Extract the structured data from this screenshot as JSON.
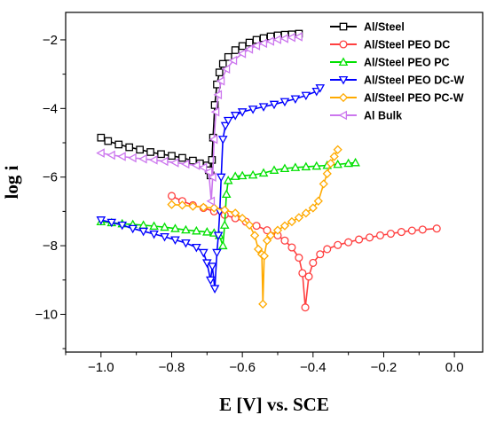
{
  "chart_data": {
    "type": "line",
    "title": "",
    "xlabel": "E [V] vs. SCE",
    "ylabel": "log i",
    "xlim": [
      -1.1,
      0.08
    ],
    "ylim": [
      -11.1,
      -1.2
    ],
    "xticks": [
      -1.0,
      -0.8,
      -0.6,
      -0.4,
      -0.2,
      0.0
    ],
    "xtick_labels": [
      "−1.0",
      "−0.8",
      "−0.6",
      "−0.4",
      "−0.2",
      "0.0"
    ],
    "yticks": [
      -10,
      -8,
      -6,
      -4,
      -2
    ],
    "ytick_labels": [
      "−10",
      "−8",
      "−6",
      "−4",
      "−2"
    ],
    "grid": false,
    "legend_position": "top-right",
    "series": [
      {
        "name": "Al/Steel",
        "color": "#000000",
        "marker": "square",
        "points": [
          [
            -1.0,
            -4.85
          ],
          [
            -0.98,
            -4.95
          ],
          [
            -0.95,
            -5.05
          ],
          [
            -0.92,
            -5.13
          ],
          [
            -0.89,
            -5.2
          ],
          [
            -0.86,
            -5.27
          ],
          [
            -0.83,
            -5.33
          ],
          [
            -0.8,
            -5.38
          ],
          [
            -0.77,
            -5.44
          ],
          [
            -0.74,
            -5.52
          ],
          [
            -0.72,
            -5.6
          ],
          [
            -0.7,
            -5.66
          ],
          [
            -0.695,
            -5.8
          ],
          [
            -0.69,
            -5.95
          ],
          [
            -0.686,
            -5.5
          ],
          [
            -0.683,
            -4.85
          ],
          [
            -0.678,
            -3.9
          ],
          [
            -0.672,
            -3.3
          ],
          [
            -0.665,
            -2.95
          ],
          [
            -0.655,
            -2.7
          ],
          [
            -0.64,
            -2.5
          ],
          [
            -0.62,
            -2.3
          ],
          [
            -0.6,
            -2.18
          ],
          [
            -0.58,
            -2.08
          ],
          [
            -0.56,
            -2.0
          ],
          [
            -0.54,
            -1.95
          ],
          [
            -0.52,
            -1.9
          ],
          [
            -0.5,
            -1.87
          ],
          [
            -0.48,
            -1.85
          ],
          [
            -0.46,
            -1.84
          ],
          [
            -0.44,
            -1.82
          ]
        ]
      },
      {
        "name": "Al/Steel PEO DC",
        "color": "#ff4040",
        "marker": "circle",
        "points": [
          [
            -0.8,
            -6.55
          ],
          [
            -0.77,
            -6.7
          ],
          [
            -0.74,
            -6.82
          ],
          [
            -0.71,
            -6.9
          ],
          [
            -0.68,
            -7.0
          ],
          [
            -0.65,
            -7.1
          ],
          [
            -0.62,
            -7.2
          ],
          [
            -0.59,
            -7.3
          ],
          [
            -0.56,
            -7.42
          ],
          [
            -0.53,
            -7.55
          ],
          [
            -0.5,
            -7.7
          ],
          [
            -0.48,
            -7.85
          ],
          [
            -0.46,
            -8.05
          ],
          [
            -0.44,
            -8.35
          ],
          [
            -0.43,
            -8.8
          ],
          [
            -0.422,
            -9.8
          ],
          [
            -0.412,
            -8.9
          ],
          [
            -0.4,
            -8.5
          ],
          [
            -0.38,
            -8.25
          ],
          [
            -0.36,
            -8.1
          ],
          [
            -0.33,
            -7.98
          ],
          [
            -0.3,
            -7.9
          ],
          [
            -0.27,
            -7.82
          ],
          [
            -0.24,
            -7.76
          ],
          [
            -0.21,
            -7.7
          ],
          [
            -0.18,
            -7.65
          ],
          [
            -0.15,
            -7.6
          ],
          [
            -0.12,
            -7.56
          ],
          [
            -0.09,
            -7.53
          ],
          [
            -0.05,
            -7.5
          ]
        ]
      },
      {
        "name": "Al/Steel PEO PC",
        "color": "#00e000",
        "marker": "triangle-up",
        "points": [
          [
            -1.0,
            -7.3
          ],
          [
            -0.97,
            -7.33
          ],
          [
            -0.94,
            -7.36
          ],
          [
            -0.91,
            -7.38
          ],
          [
            -0.88,
            -7.4
          ],
          [
            -0.85,
            -7.43
          ],
          [
            -0.82,
            -7.46
          ],
          [
            -0.79,
            -7.5
          ],
          [
            -0.76,
            -7.54
          ],
          [
            -0.73,
            -7.57
          ],
          [
            -0.7,
            -7.6
          ],
          [
            -0.68,
            -7.63
          ],
          [
            -0.665,
            -7.7
          ],
          [
            -0.655,
            -8.0
          ],
          [
            -0.65,
            -7.4
          ],
          [
            -0.645,
            -6.5
          ],
          [
            -0.64,
            -6.1
          ],
          [
            -0.62,
            -5.98
          ],
          [
            -0.6,
            -5.96
          ],
          [
            -0.57,
            -5.94
          ],
          [
            -0.54,
            -5.88
          ],
          [
            -0.51,
            -5.8
          ],
          [
            -0.48,
            -5.75
          ],
          [
            -0.45,
            -5.72
          ],
          [
            -0.42,
            -5.7
          ],
          [
            -0.39,
            -5.68
          ],
          [
            -0.36,
            -5.66
          ],
          [
            -0.33,
            -5.63
          ],
          [
            -0.3,
            -5.6
          ],
          [
            -0.28,
            -5.58
          ]
        ]
      },
      {
        "name": "Al/Steel PEO DC-W",
        "color": "#0000ff",
        "marker": "triangle-down",
        "points": [
          [
            -1.0,
            -7.25
          ],
          [
            -0.97,
            -7.32
          ],
          [
            -0.94,
            -7.4
          ],
          [
            -0.91,
            -7.5
          ],
          [
            -0.88,
            -7.58
          ],
          [
            -0.85,
            -7.66
          ],
          [
            -0.82,
            -7.74
          ],
          [
            -0.79,
            -7.83
          ],
          [
            -0.76,
            -7.92
          ],
          [
            -0.73,
            -8.05
          ],
          [
            -0.71,
            -8.2
          ],
          [
            -0.7,
            -8.5
          ],
          [
            -0.69,
            -9.0
          ],
          [
            -0.685,
            -8.6
          ],
          [
            -0.678,
            -9.25
          ],
          [
            -0.672,
            -8.2
          ],
          [
            -0.668,
            -7.7
          ],
          [
            -0.664,
            -7.0
          ],
          [
            -0.66,
            -6.0
          ],
          [
            -0.655,
            -4.9
          ],
          [
            -0.648,
            -4.5
          ],
          [
            -0.64,
            -4.35
          ],
          [
            -0.62,
            -4.2
          ],
          [
            -0.6,
            -4.1
          ],
          [
            -0.57,
            -4.02
          ],
          [
            -0.54,
            -3.95
          ],
          [
            -0.51,
            -3.88
          ],
          [
            -0.48,
            -3.8
          ],
          [
            -0.45,
            -3.72
          ],
          [
            -0.42,
            -3.62
          ],
          [
            -0.39,
            -3.5
          ],
          [
            -0.38,
            -3.4
          ]
        ]
      },
      {
        "name": "Al/Steel PEO PC-W",
        "color": "#ffaa00",
        "marker": "diamond",
        "points": [
          [
            -0.8,
            -6.8
          ],
          [
            -0.77,
            -6.82
          ],
          [
            -0.74,
            -6.85
          ],
          [
            -0.71,
            -6.88
          ],
          [
            -0.68,
            -6.9
          ],
          [
            -0.65,
            -6.96
          ],
          [
            -0.62,
            -7.05
          ],
          [
            -0.6,
            -7.2
          ],
          [
            -0.58,
            -7.4
          ],
          [
            -0.565,
            -7.7
          ],
          [
            -0.555,
            -8.1
          ],
          [
            -0.545,
            -8.25
          ],
          [
            -0.542,
            -9.7
          ],
          [
            -0.538,
            -8.3
          ],
          [
            -0.53,
            -7.85
          ],
          [
            -0.52,
            -7.7
          ],
          [
            -0.5,
            -7.55
          ],
          [
            -0.48,
            -7.42
          ],
          [
            -0.46,
            -7.3
          ],
          [
            -0.44,
            -7.18
          ],
          [
            -0.42,
            -7.05
          ],
          [
            -0.4,
            -6.9
          ],
          [
            -0.385,
            -6.7
          ],
          [
            -0.37,
            -6.2
          ],
          [
            -0.36,
            -5.9
          ],
          [
            -0.35,
            -5.6
          ],
          [
            -0.34,
            -5.4
          ],
          [
            -0.33,
            -5.2
          ]
        ]
      },
      {
        "name": "Al Bulk",
        "color": "#cc77ee",
        "marker": "triangle-left",
        "points": [
          [
            -1.0,
            -5.3
          ],
          [
            -0.97,
            -5.36
          ],
          [
            -0.94,
            -5.4
          ],
          [
            -0.91,
            -5.44
          ],
          [
            -0.88,
            -5.47
          ],
          [
            -0.85,
            -5.5
          ],
          [
            -0.82,
            -5.54
          ],
          [
            -0.79,
            -5.58
          ],
          [
            -0.76,
            -5.62
          ],
          [
            -0.73,
            -5.66
          ],
          [
            -0.71,
            -5.72
          ],
          [
            -0.695,
            -5.85
          ],
          [
            -0.688,
            -6.7
          ],
          [
            -0.684,
            -6.0
          ],
          [
            -0.68,
            -4.9
          ],
          [
            -0.675,
            -4.1
          ],
          [
            -0.668,
            -3.6
          ],
          [
            -0.66,
            -3.2
          ],
          [
            -0.645,
            -2.85
          ],
          [
            -0.625,
            -2.6
          ],
          [
            -0.6,
            -2.4
          ],
          [
            -0.58,
            -2.27
          ],
          [
            -0.56,
            -2.17
          ],
          [
            -0.54,
            -2.1
          ],
          [
            -0.52,
            -2.04
          ],
          [
            -0.5,
            -1.99
          ],
          [
            -0.48,
            -1.96
          ],
          [
            -0.46,
            -1.93
          ],
          [
            -0.44,
            -1.91
          ]
        ]
      }
    ]
  }
}
